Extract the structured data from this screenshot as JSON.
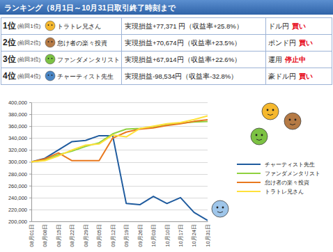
{
  "header": {
    "title": "ランキング（8月1日～10月31日取引終了時刻まで"
  },
  "table": {
    "rows": [
      {
        "rank": "1位",
        "previous": "(前回1位)",
        "name": "トラトレ兄さん",
        "result": "実現損益+77,371 円（収益率+25.8%）",
        "pair": "ドル円",
        "action": "買い"
      },
      {
        "rank": "2位",
        "previous": "(前回2位)",
        "name": "怠け者の楽々投資",
        "result": "実現損益+70,674円（収益率+23.5%）",
        "pair": "ポンド円",
        "action": "買い"
      },
      {
        "rank": "3位",
        "previous": "(前回3位)",
        "name": "ファンダメンタリスト",
        "result": "実現損益+67,914円（収益率+22.6%）",
        "pair": "運用",
        "action": "停止中"
      },
      {
        "rank": "4位",
        "previous": "(前回4位)",
        "name": "チャーティスト先生",
        "result": "実現損益-98,534円（収益率-32.8%）",
        "pair": "豪ドル円",
        "action": "買い"
      }
    ]
  },
  "chart_data": {
    "type": "line",
    "categories": [
      "08月01日",
      "08月08日",
      "08月15日",
      "08月22日",
      "08月29日",
      "09月05日",
      "09月12日",
      "09月19日",
      "09月26日",
      "10月03日",
      "10月10日",
      "10月17日",
      "10月24日",
      "10月31日"
    ],
    "series": [
      {
        "name": "チャーティスト先生",
        "color": "#1f5b9e",
        "values": [
          300000,
          306000,
          320000,
          334000,
          336000,
          344000,
          344000,
          230000,
          228000,
          242000,
          230000,
          240000,
          215000,
          201466
        ]
      },
      {
        "name": "ファンダメンタリスト",
        "color": "#8fd13f",
        "values": [
          300000,
          303000,
          312000,
          318000,
          326000,
          332000,
          347000,
          355000,
          356000,
          358000,
          362000,
          365000,
          367000,
          367914
        ]
      },
      {
        "name": "怠け者の楽々投資",
        "color": "#e8781e",
        "values": [
          300000,
          305000,
          315000,
          302000,
          302000,
          302000,
          340000,
          350000,
          355000,
          357000,
          361000,
          364000,
          368000,
          370674
        ]
      },
      {
        "name": "トラトレ兄さん",
        "color": "#ffe13a",
        "values": [
          300000,
          302000,
          310000,
          320000,
          328000,
          330000,
          345000,
          342000,
          356000,
          360000,
          364000,
          366000,
          371000,
          377371
        ]
      }
    ],
    "ylim": [
      200000,
      400000
    ],
    "yticks": [
      {
        "value": 200000,
        "label": "200,000"
      },
      {
        "value": 220000,
        "label": "220,000"
      },
      {
        "value": 240000,
        "label": "240,000"
      },
      {
        "value": 260000,
        "label": "260,000"
      },
      {
        "value": 280000,
        "label": "280,000"
      },
      {
        "value": 300000,
        "label": "300,000"
      },
      {
        "value": 320000,
        "label": "320,000"
      },
      {
        "value": 340000,
        "label": "340,000"
      },
      {
        "value": 360000,
        "label": "360,000"
      },
      {
        "value": 380000,
        "label": "380,000"
      },
      {
        "value": 400000,
        "label": "400,000"
      }
    ],
    "grid": true,
    "legend": "right"
  }
}
